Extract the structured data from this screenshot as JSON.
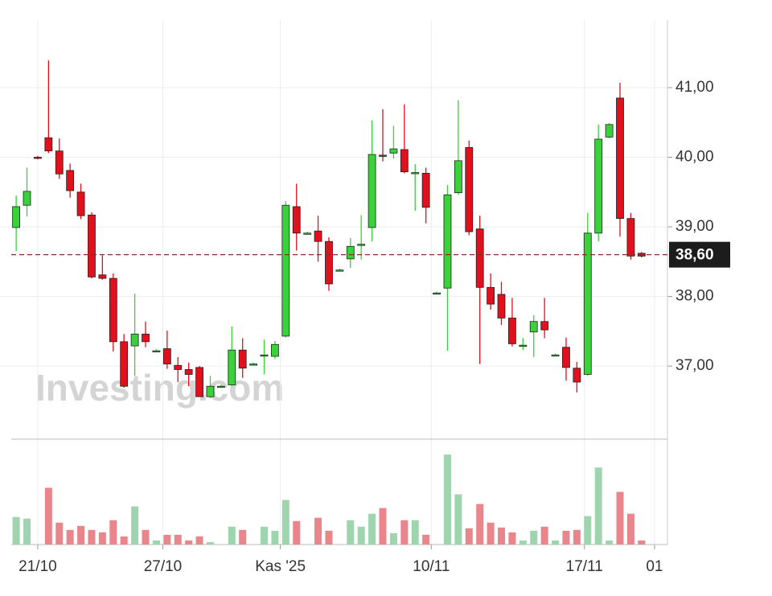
{
  "chart_data": {
    "type": "candlestick",
    "watermark": "Investing.com",
    "up_color": "#3ad13a",
    "down_color": "#e0101c",
    "volume_up_color": "#9fd5ae",
    "volume_down_color": "#e8868c",
    "open": [
      38.99,
      39.31,
      40.0,
      40.28,
      40.09,
      39.81,
      39.5,
      39.17,
      38.31,
      38.26,
      37.35,
      37.29,
      37.46,
      37.22,
      37.25,
      37.01,
      36.95,
      36.98,
      36.56,
      36.71,
      36.73,
      37.23,
      37.03,
      37.15,
      37.14,
      37.43,
      39.29,
      38.91,
      38.94,
      38.79,
      38.38,
      38.54,
      38.75,
      38.99,
      40.03,
      40.06,
      40.11,
      39.78,
      39.77,
      38.05,
      38.12,
      39.49,
      40.14,
      38.97,
      38.13,
      38.03,
      37.69,
      37.3,
      37.49,
      37.64,
      37.16,
      37.27,
      36.97,
      36.88,
      38.91,
      40.29,
      40.85,
      39.12,
      38.62
    ],
    "high": [
      39.45,
      39.85,
      40.02,
      41.39,
      40.27,
      39.91,
      39.62,
      39.21,
      38.59,
      38.33,
      37.46,
      38.04,
      37.64,
      37.24,
      37.51,
      37.13,
      37.05,
      37.0,
      36.86,
      36.73,
      37.57,
      37.4,
      37.05,
      37.38,
      37.36,
      39.37,
      39.62,
      38.93,
      39.16,
      38.85,
      38.4,
      38.84,
      39.17,
      40.53,
      40.69,
      40.45,
      40.76,
      39.9,
      39.85,
      38.07,
      39.6,
      40.82,
      40.24,
      39.16,
      38.33,
      38.21,
      37.98,
      37.4,
      37.73,
      37.98,
      37.18,
      37.41,
      37.06,
      39.2,
      40.47,
      40.49,
      41.07,
      39.2,
      38.64
    ],
    "low": [
      38.65,
      39.15,
      39.97,
      40.06,
      39.69,
      39.42,
      39.11,
      38.26,
      38.24,
      37.21,
      36.69,
      36.86,
      37.27,
      37.2,
      36.96,
      36.77,
      36.71,
      36.56,
      36.54,
      36.7,
      36.71,
      36.83,
      37.01,
      36.88,
      37.1,
      37.41,
      38.66,
      38.89,
      38.5,
      38.08,
      38.36,
      38.41,
      38.53,
      38.79,
      39.94,
      39.98,
      39.77,
      39.23,
      39.05,
      38.03,
      37.22,
      39.46,
      38.88,
      37.03,
      37.81,
      37.59,
      37.28,
      37.23,
      37.13,
      37.4,
      37.14,
      36.79,
      36.62,
      36.86,
      38.79,
      40.27,
      38.86,
      38.53,
      38.56
    ],
    "close": [
      39.29,
      39.51,
      39.99,
      40.09,
      39.76,
      39.52,
      39.16,
      38.28,
      38.26,
      37.35,
      36.71,
      37.46,
      37.35,
      37.22,
      37.03,
      36.95,
      36.88,
      36.56,
      36.71,
      36.71,
      37.23,
      36.97,
      37.03,
      37.16,
      37.31,
      39.31,
      38.91,
      38.91,
      38.79,
      38.18,
      38.38,
      38.72,
      38.75,
      40.04,
      40.02,
      40.12,
      39.79,
      39.78,
      39.28,
      38.05,
      39.46,
      39.95,
      38.93,
      38.13,
      37.89,
      37.69,
      37.32,
      37.3,
      37.64,
      37.52,
      37.16,
      36.98,
      36.77,
      38.91,
      40.26,
      40.47,
      39.12,
      38.58,
      38.58
    ],
    "volume": [
      34,
      32,
      0,
      70,
      27,
      18,
      23,
      18,
      15,
      30,
      10,
      47,
      18,
      5,
      12,
      12,
      5,
      10,
      3,
      0,
      22,
      18,
      0,
      22,
      17,
      55,
      29,
      0,
      33,
      17,
      0,
      30,
      22,
      38,
      45,
      14,
      30,
      30,
      12,
      0,
      111,
      62,
      20,
      50,
      27,
      21,
      15,
      5,
      17,
      22,
      5,
      17,
      18,
      35,
      95,
      5,
      65,
      38,
      5
    ],
    "xlim": [
      -1.5,
      60.4
    ],
    "xticks": [
      {
        "value": 2,
        "label": "21/10"
      },
      {
        "value": 13.6,
        "label": "27/10"
      },
      {
        "value": 24.5,
        "label": "Kas '25"
      },
      {
        "value": 38.5,
        "label": "10/11"
      },
      {
        "value": 52.7,
        "label": "17/11"
      },
      {
        "value": 59.2,
        "label": "01"
      }
    ],
    "ylim": [
      35.95,
      41.97
    ],
    "yticks": [
      {
        "value": 37,
        "label": "37,00"
      },
      {
        "value": 38,
        "label": "38,00"
      },
      {
        "value": 39,
        "label": "39,00"
      },
      {
        "value": 40,
        "label": "40,00"
      },
      {
        "value": 41,
        "label": "41,00"
      }
    ],
    "volume_ylim": [
      0,
      130
    ],
    "last_price": {
      "value": 38.6,
      "label": "38,60"
    },
    "grid": true
  }
}
